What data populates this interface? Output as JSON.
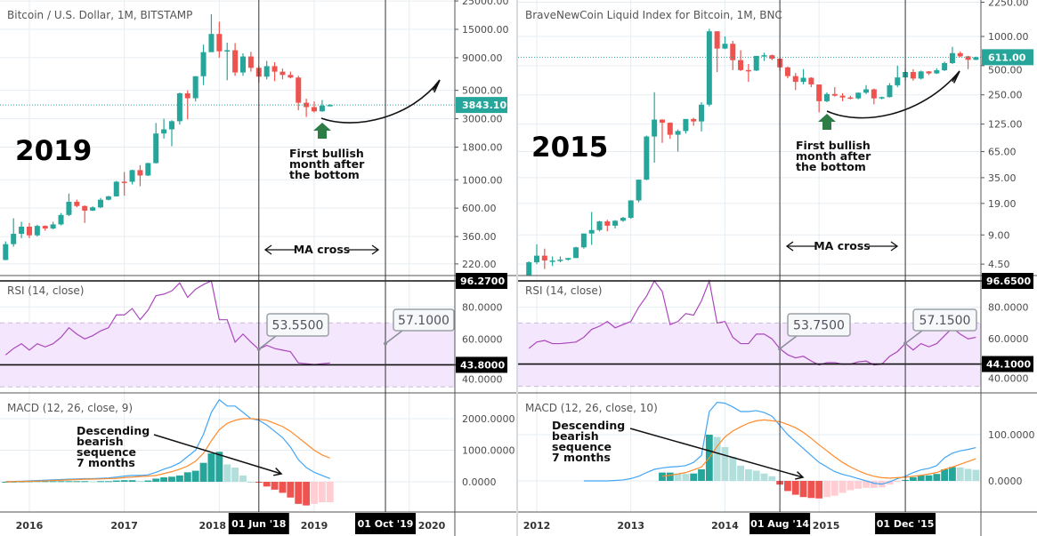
{
  "colors": {
    "up": "#26a69a",
    "down": "#ef5350",
    "hist_up_strong": "#26a69a",
    "hist_up_weak": "#b2dfdb",
    "hist_down_strong": "#ef5350",
    "hist_down_weak": "#ffcdd2",
    "rsi": "#ab47bc",
    "rsi_band": "#f3e6fd",
    "macd": "#42a5f5",
    "signal": "#ff8a2b",
    "bull_arrow": "#2e7d46"
  },
  "chart_data": [
    {
      "type": "candlestick",
      "title": "Bitcoin / U.S. Dollar, 1M, BITSTAMP",
      "year_label": "2019",
      "last_price": "3843.10",
      "months": [
        "2015-10",
        "2015-11",
        "2015-12",
        "2016-01",
        "2016-02",
        "2016-03",
        "2016-04",
        "2016-05",
        "2016-06",
        "2016-07",
        "2016-08",
        "2016-09",
        "2016-10",
        "2016-11",
        "2016-12",
        "2017-01",
        "2017-02",
        "2017-03",
        "2017-04",
        "2017-05",
        "2017-06",
        "2017-07",
        "2017-08",
        "2017-09",
        "2017-10",
        "2017-11",
        "2017-12",
        "2018-01",
        "2018-02",
        "2018-03",
        "2018-04",
        "2018-05",
        "2018-06",
        "2018-07",
        "2018-08",
        "2018-09",
        "2018-10",
        "2018-11",
        "2018-12",
        "2019-01",
        "2019-02",
        "2019-03"
      ],
      "ohlc": [
        [
          236,
          330,
          235,
          314
        ],
        [
          314,
          500,
          300,
          378
        ],
        [
          378,
          470,
          350,
          430
        ],
        [
          430,
          460,
          350,
          368
        ],
        [
          368,
          445,
          360,
          436
        ],
        [
          436,
          440,
          400,
          416
        ],
        [
          416,
          470,
          410,
          448
        ],
        [
          448,
          550,
          440,
          531
        ],
        [
          531,
          780,
          520,
          673
        ],
        [
          673,
          700,
          610,
          624
        ],
        [
          624,
          630,
          460,
          574
        ],
        [
          574,
          620,
          570,
          609
        ],
        [
          609,
          720,
          600,
          698
        ],
        [
          698,
          750,
          690,
          742
        ],
        [
          742,
          980,
          740,
          966
        ],
        [
          966,
          1150,
          750,
          965
        ],
        [
          965,
          1200,
          920,
          1190
        ],
        [
          1190,
          1300,
          890,
          1080
        ],
        [
          1080,
          1360,
          1070,
          1350
        ],
        [
          1350,
          2780,
          1340,
          2300
        ],
        [
          2300,
          3000,
          2100,
          2480
        ],
        [
          2480,
          2920,
          1830,
          2870
        ],
        [
          2870,
          4800,
          2700,
          4740
        ],
        [
          4740,
          5000,
          2970,
          4340
        ],
        [
          4340,
          6450,
          4100,
          6450
        ],
        [
          6450,
          11400,
          5500,
          9950
        ],
        [
          9950,
          19666,
          9950,
          13800
        ],
        [
          13800,
          17200,
          9000,
          10100
        ],
        [
          10100,
          11800,
          6000,
          10300
        ],
        [
          10300,
          11700,
          6500,
          6900
        ],
        [
          6900,
          9750,
          6500,
          9200
        ],
        [
          9200,
          10000,
          7000,
          7500
        ],
        [
          7500,
          7780,
          5750,
          6400
        ],
        [
          6400,
          8500,
          6100,
          7730
        ],
        [
          7730,
          8300,
          5900,
          7000
        ],
        [
          7000,
          7400,
          6100,
          6600
        ],
        [
          6600,
          7000,
          6200,
          6300
        ],
        [
          6300,
          6500,
          3500,
          4000
        ],
        [
          4000,
          4300,
          3100,
          3700
        ],
        [
          3700,
          4100,
          3350,
          3430
        ],
        [
          3430,
          4200,
          3400,
          3800
        ],
        [
          3800,
          3900,
          3750,
          3843.1
        ]
      ],
      "price_axis": {
        "scale": "log",
        "ticks": [
          "25000.00",
          "15000.00",
          "9000.00",
          "5000.00",
          "3000.00",
          "1800.00",
          "1000.00",
          "600.00",
          "360.00",
          "220.00"
        ]
      },
      "rsi": {
        "title": "RSI (14, close)",
        "values": [
          50,
          54,
          57,
          53,
          57,
          55,
          57,
          61,
          67,
          63,
          60,
          62,
          65,
          67,
          75,
          75,
          79,
          72,
          78,
          87,
          88,
          90,
          95,
          86,
          91,
          94,
          96.27,
          72,
          72,
          58,
          63,
          58,
          53.55,
          56,
          54,
          53,
          52,
          45,
          44.5,
          44,
          44.5,
          45
        ],
        "band": [
          30,
          70
        ],
        "ticks": [
          "80.0000",
          "60.0000",
          "40.0000"
        ],
        "hlines": [
          "96.2700",
          "43.8000"
        ],
        "callouts": [
          {
            "month": "2018-06",
            "value": "53.5500"
          },
          {
            "month": "2019-10",
            "value": "57.1000"
          }
        ]
      },
      "macd": {
        "title": "MACD (12, 26, close, 9)",
        "macd": [
          0,
          10,
          20,
          30,
          40,
          50,
          60,
          70,
          80,
          90,
          100,
          100,
          110,
          120,
          150,
          180,
          200,
          200,
          220,
          300,
          400,
          480,
          600,
          800,
          1000,
          1500,
          2200,
          2600,
          2400,
          2400,
          2200,
          2000,
          1950,
          1800,
          1600,
          1400,
          1100,
          700,
          450,
          300,
          200,
          100
        ],
        "signal": [
          0,
          5,
          10,
          15,
          20,
          30,
          40,
          50,
          60,
          70,
          80,
          85,
          90,
          100,
          110,
          130,
          150,
          170,
          180,
          200,
          260,
          320,
          400,
          500,
          650,
          900,
          1300,
          1650,
          1850,
          1950,
          2000,
          2000,
          1980,
          1950,
          1850,
          1750,
          1600,
          1400,
          1200,
          1000,
          850,
          750
        ],
        "ticks": [
          "2000.0000",
          "1000.0000",
          "0.0000"
        ]
      },
      "time_axis": {
        "ticks": [
          {
            "label": "2016",
            "month": "2016-01"
          },
          {
            "label": "2017",
            "month": "2017-01"
          },
          {
            "label": "2018",
            "month": "2018-01"
          },
          {
            "label": "2019",
            "month": "2019-01"
          },
          {
            "label": "2020",
            "month": "2020-01"
          }
        ],
        "markers": [
          {
            "label": "01 Jun '18",
            "month": "2018-06"
          },
          {
            "label": "01 Oct '19",
            "month": "2019-10"
          }
        ]
      },
      "annotations": {
        "bullish": [
          "First bullish",
          "month after",
          "the bottom"
        ],
        "ma_cross": "MA cross",
        "bearish": [
          "Descending",
          "bearish",
          "sequence",
          "7 months"
        ]
      }
    },
    {
      "type": "candlestick",
      "title": "BraveNewCoin Liquid Index for Bitcoin, 1M, BNC",
      "year_label": "2015",
      "last_price": "611.00",
      "months": [
        "2011-12",
        "2012-01",
        "2012-02",
        "2012-03",
        "2012-04",
        "2012-05",
        "2012-06",
        "2012-07",
        "2012-08",
        "2012-09",
        "2012-10",
        "2012-11",
        "2012-12",
        "2013-01",
        "2013-02",
        "2013-03",
        "2013-04",
        "2013-05",
        "2013-06",
        "2013-07",
        "2013-08",
        "2013-09",
        "2013-10",
        "2013-11",
        "2013-12",
        "2014-01",
        "2014-02",
        "2014-03",
        "2014-04",
        "2014-05",
        "2014-06",
        "2014-07",
        "2014-08",
        "2014-09",
        "2014-10",
        "2014-11",
        "2014-12",
        "2015-01",
        "2015-02",
        "2015-03",
        "2015-04",
        "2015-05",
        "2015-06",
        "2015-07",
        "2015-08",
        "2015-09",
        "2015-10",
        "2015-11",
        "2015-12",
        "2016-01",
        "2016-02",
        "2016-03",
        "2016-04",
        "2016-05",
        "2016-06",
        "2016-07",
        "2016-08",
        "2016-09"
      ],
      "ohlc": [
        [
          3.0,
          4.8,
          2.8,
          4.7
        ],
        [
          4.7,
          7.2,
          4.5,
          5.5
        ],
        [
          5.5,
          6.5,
          4.0,
          4.9
        ],
        [
          4.9,
          5.4,
          4.3,
          4.9
        ],
        [
          4.9,
          5.4,
          4.7,
          5.0
        ],
        [
          5.0,
          5.2,
          4.9,
          5.2
        ],
        [
          5.2,
          6.8,
          5.2,
          6.7
        ],
        [
          6.7,
          9.3,
          6.5,
          9.3
        ],
        [
          9.3,
          15.5,
          7.1,
          10.1
        ],
        [
          10.1,
          12.6,
          9.8,
          12.4
        ],
        [
          12.4,
          12.9,
          9.8,
          11.2
        ],
        [
          11.2,
          12.8,
          10.5,
          12.6
        ],
        [
          12.6,
          13.8,
          12.3,
          13.5
        ],
        [
          13.5,
          20.5,
          13.2,
          20.4
        ],
        [
          20.4,
          33.5,
          19.5,
          33.4
        ],
        [
          33.4,
          95,
          33,
          93
        ],
        [
          93,
          266,
          50,
          139
        ],
        [
          139,
          140,
          80,
          129
        ],
        [
          129,
          130,
          88,
          97
        ],
        [
          97,
          110,
          65,
          106
        ],
        [
          106,
          141,
          100,
          141
        ],
        [
          141,
          145,
          120,
          133
        ],
        [
          133,
          210,
          105,
          198
        ],
        [
          198,
          1200,
          190,
          1130
        ],
        [
          1130,
          1130,
          430,
          750
        ],
        [
          750,
          1000,
          740,
          840
        ],
        [
          840,
          900,
          450,
          570
        ],
        [
          570,
          720,
          440,
          450
        ],
        [
          450,
          520,
          340,
          445
        ],
        [
          445,
          630,
          440,
          630
        ],
        [
          630,
          680,
          560,
          640
        ],
        [
          640,
          650,
          570,
          590
        ],
        [
          590,
          600,
          440,
          480
        ],
        [
          480,
          490,
          370,
          390
        ],
        [
          390,
          420,
          280,
          340
        ],
        [
          340,
          460,
          320,
          375
        ],
        [
          375,
          380,
          300,
          320
        ],
        [
          320,
          320,
          165,
          215
        ],
        [
          215,
          265,
          210,
          255
        ],
        [
          255,
          300,
          240,
          245
        ],
        [
          245,
          260,
          215,
          235
        ],
        [
          235,
          245,
          225,
          230
        ],
        [
          230,
          265,
          225,
          263
        ],
        [
          263,
          315,
          255,
          285
        ],
        [
          285,
          290,
          200,
          230
        ],
        [
          230,
          240,
          225,
          237
        ],
        [
          237,
          330,
          235,
          314
        ],
        [
          314,
          500,
          300,
          378
        ],
        [
          378,
          470,
          350,
          430
        ],
        [
          430,
          460,
          350,
          368
        ],
        [
          368,
          445,
          360,
          436
        ],
        [
          436,
          440,
          400,
          416
        ],
        [
          416,
          470,
          410,
          448
        ],
        [
          448,
          550,
          440,
          531
        ],
        [
          531,
          780,
          520,
          673
        ],
        [
          673,
          700,
          610,
          624
        ],
        [
          624,
          630,
          460,
          574
        ],
        [
          574,
          620,
          570,
          611
        ]
      ],
      "price_axis": {
        "scale": "log",
        "ticks": [
          "2250.00",
          "1000.00",
          "500.00",
          "250.00",
          "125.00",
          "65.00",
          "35.00",
          "19.00",
          "9.00",
          "4.50"
        ]
      },
      "rsi": {
        "title": "RSI (14, close)",
        "values": [
          54,
          58,
          59,
          57,
          57,
          57.5,
          58,
          61,
          66,
          68,
          71,
          67,
          69,
          71,
          80,
          87,
          96.65,
          90,
          69,
          71,
          76,
          75,
          84,
          96.65,
          70,
          71,
          61,
          57,
          57,
          63,
          63,
          60,
          53.75,
          50,
          48,
          49,
          46,
          43.5,
          45,
          45,
          44,
          44,
          45.5,
          46,
          43.5,
          44,
          49,
          52,
          57.15,
          53,
          57,
          55,
          57,
          62,
          67,
          63,
          60,
          61
        ],
        "band": [
          30,
          70
        ],
        "ticks": [
          "80.0000",
          "60.0000",
          "40.0000"
        ],
        "hlines": [
          "96.6500",
          "44.1000"
        ],
        "callouts": [
          {
            "month": "2014-08",
            "value": "53.7500"
          },
          {
            "month": "2015-12",
            "value": "57.1500"
          }
        ]
      },
      "macd": {
        "title": "MACD (12, 26, close, 10)",
        "macd": [
          null,
          null,
          null,
          null,
          null,
          null,
          null,
          0,
          0,
          0,
          0,
          1,
          2,
          5,
          10,
          18,
          25,
          28,
          30,
          31,
          33,
          40,
          55,
          150,
          170,
          168,
          160,
          150,
          150,
          152,
          148,
          140,
          120,
          100,
          85,
          70,
          55,
          40,
          30,
          20,
          14,
          10,
          5,
          0,
          -5,
          -7,
          -2,
          5,
          10,
          18,
          24,
          27,
          33,
          50,
          60,
          65,
          68,
          72
        ],
        "signal": [
          null,
          null,
          null,
          null,
          null,
          null,
          null,
          null,
          null,
          null,
          null,
          null,
          null,
          null,
          null,
          null,
          null,
          10,
          12,
          15,
          18,
          24,
          30,
          50,
          75,
          95,
          108,
          117,
          125,
          130,
          132,
          130,
          128,
          122,
          115,
          105,
          92,
          78,
          65,
          52,
          40,
          30,
          22,
          15,
          10,
          7,
          6,
          7,
          8,
          10,
          12,
          15,
          18,
          25,
          30,
          36,
          42,
          48
        ],
        "ticks": [
          "100.0000",
          "0.0000"
        ]
      },
      "time_axis": {
        "ticks": [
          {
            "label": "2012",
            "month": "2012-01"
          },
          {
            "label": "2013",
            "month": "2013-01"
          },
          {
            "label": "2014",
            "month": "2014-01"
          },
          {
            "label": "2015",
            "month": "2015-01"
          }
        ],
        "markers": [
          {
            "label": "01 Aug '14",
            "month": "2014-08"
          },
          {
            "label": "01 Dec '15",
            "month": "2015-12"
          }
        ]
      },
      "annotations": {
        "bullish": [
          "First bullish",
          "month after",
          "the bottom"
        ],
        "ma_cross": "MA cross",
        "bearish": [
          "Descending",
          "bearish",
          "sequence",
          "7 months"
        ]
      }
    }
  ]
}
